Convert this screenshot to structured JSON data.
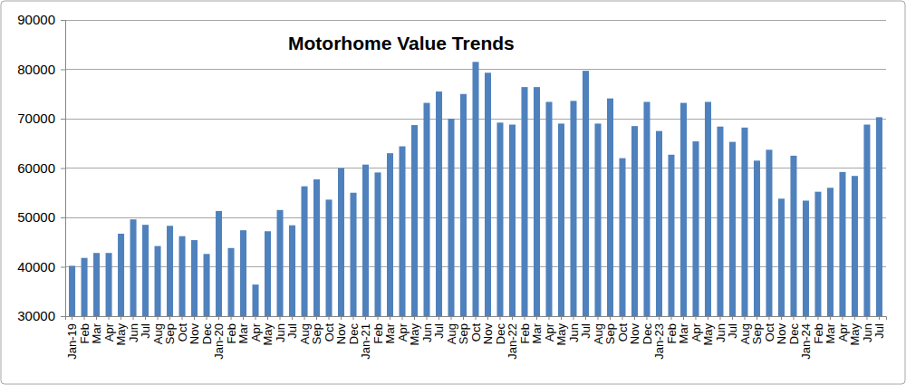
{
  "chart_data": {
    "type": "bar",
    "title": "Motorhome Value Trends",
    "categories": [
      "Jan-19",
      "Feb",
      "Mar",
      "Apr",
      "May",
      "Jun",
      "Jul",
      "Aug",
      "Sep",
      "Oct",
      "Nov",
      "Dec",
      "Jan-20",
      "Feb",
      "Mar",
      "Apr",
      "May",
      "Jun",
      "Jul",
      "Aug",
      "Sep",
      "Oct",
      "Nov",
      "Dec",
      "Jan-21",
      "Feb",
      "Mar",
      "Apr",
      "May",
      "Jun",
      "Jul",
      "Aug",
      "Sep",
      "Oct",
      "Nov",
      "Dec",
      "Jan-22",
      "Feb",
      "Mar",
      "Apr",
      "May",
      "Jun",
      "Jul",
      "Aug",
      "Sep",
      "Oct",
      "Nov",
      "Dec",
      "Jan-23",
      "Feb",
      "Mar",
      "Apr",
      "May",
      "Jun",
      "Jul",
      "Aug",
      "Sep",
      "Oct",
      "Nov",
      "Dec",
      "Jan-24",
      "Feb",
      "Mar",
      "Apr",
      "May",
      "Jun",
      "Jul"
    ],
    "values": [
      40200,
      41800,
      42800,
      42800,
      46700,
      49600,
      48500,
      44200,
      48300,
      46200,
      45400,
      42600,
      51300,
      43800,
      47400,
      36400,
      47200,
      51500,
      48400,
      56300,
      57700,
      53600,
      60000,
      55000,
      60700,
      59100,
      63000,
      64400,
      68700,
      73200,
      75500,
      70000,
      75000,
      81500,
      79300,
      69200,
      68800,
      76400,
      76400,
      73400,
      69000,
      73600,
      79700,
      69000,
      74100,
      62000,
      68500,
      73400,
      67500,
      62700,
      73200,
      65400,
      73400,
      68400,
      65300,
      68200,
      61500,
      63700,
      53800,
      62500,
      53400,
      55200,
      56000,
      59200,
      58400,
      68800,
      70300
    ],
    "color": "#4f81bd",
    "ylim": [
      30000,
      90000
    ],
    "yticks": [
      30000,
      40000,
      50000,
      60000,
      70000,
      80000,
      90000
    ],
    "grid": true
  }
}
